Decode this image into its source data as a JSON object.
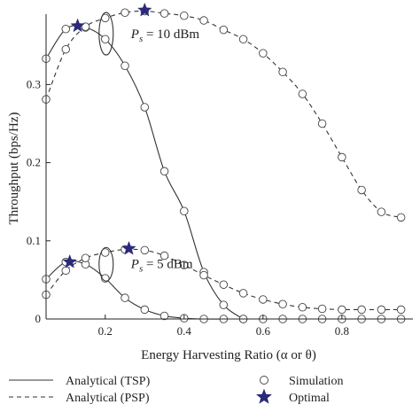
{
  "chart_data": {
    "type": "line",
    "xlabel": "Energy Harvesting Ratio (α or θ)",
    "ylabel": "Throughput (bps/Hz)",
    "xlim": [
      0.05,
      0.98
    ],
    "ylim": [
      0,
      0.39
    ],
    "xticks": [
      {
        "value": 0.2,
        "label": "0.2"
      },
      {
        "value": 0.4,
        "label": "0.4"
      },
      {
        "value": 0.6,
        "label": "0.6"
      },
      {
        "value": 0.8,
        "label": "0.8"
      }
    ],
    "yticks": [
      {
        "value": 0,
        "label": "0"
      },
      {
        "value": 0.1,
        "label": "0.1"
      },
      {
        "value": 0.2,
        "label": "0.2"
      },
      {
        "value": 0.3,
        "label": "0.3"
      }
    ],
    "series": [
      {
        "name": "Analytical (TSP)",
        "style": "solid",
        "group": "Ps = 10 dBm",
        "x": [
          0.05,
          0.1,
          0.15,
          0.2,
          0.25,
          0.3,
          0.35,
          0.4,
          0.45,
          0.5,
          0.55
        ],
        "y": [
          0.333,
          0.371,
          0.373,
          0.358,
          0.324,
          0.271,
          0.189,
          0.138,
          0.06,
          0.018,
          0.0
        ]
      },
      {
        "name": "Analytical (PSP)",
        "style": "dashed",
        "group": "Ps = 10 dBm",
        "x": [
          0.05,
          0.1,
          0.15,
          0.2,
          0.25,
          0.3,
          0.35,
          0.4,
          0.45,
          0.5,
          0.55,
          0.6,
          0.65,
          0.7,
          0.75,
          0.8,
          0.85,
          0.9,
          0.95
        ],
        "y": [
          0.281,
          0.345,
          0.374,
          0.385,
          0.392,
          0.394,
          0.391,
          0.388,
          0.382,
          0.37,
          0.358,
          0.34,
          0.316,
          0.288,
          0.25,
          0.207,
          0.165,
          0.137,
          0.13
        ]
      },
      {
        "name": "Analytical (TSP)",
        "style": "solid",
        "group": "Ps = 5 dBm",
        "x": [
          0.05,
          0.1,
          0.15,
          0.2,
          0.25,
          0.3,
          0.35,
          0.4,
          0.45,
          0.5,
          0.55,
          0.6,
          0.65,
          0.7,
          0.75,
          0.8,
          0.85,
          0.9,
          0.95
        ],
        "y": [
          0.051,
          0.073,
          0.07,
          0.052,
          0.027,
          0.012,
          0.004,
          0.001,
          0.0,
          0.0,
          0.0,
          0.0,
          0.0,
          0.0,
          0.0,
          0.0,
          0.0,
          0.0,
          0.0
        ]
      },
      {
        "name": "Analytical (PSP)",
        "style": "dashed",
        "group": "Ps = 5 dBm",
        "x": [
          0.05,
          0.1,
          0.15,
          0.2,
          0.25,
          0.3,
          0.35,
          0.4,
          0.45,
          0.5,
          0.55,
          0.6,
          0.65,
          0.7,
          0.75,
          0.8,
          0.85,
          0.9,
          0.95
        ],
        "y": [
          0.031,
          0.062,
          0.078,
          0.085,
          0.089,
          0.088,
          0.081,
          0.069,
          0.056,
          0.044,
          0.033,
          0.025,
          0.019,
          0.015,
          0.013,
          0.012,
          0.012,
          0.012,
          0.012
        ]
      }
    ],
    "optimal_points": [
      {
        "x": 0.13,
        "y": 0.375
      },
      {
        "x": 0.3,
        "y": 0.395
      },
      {
        "x": 0.11,
        "y": 0.073
      },
      {
        "x": 0.26,
        "y": 0.09
      }
    ],
    "annotations": [
      {
        "label_main": "P",
        "label_sub": "s",
        "label_rest": " = 10 dBm",
        "anchor_x": 0.2,
        "anchor_y": 0.365
      },
      {
        "label_main": "P",
        "label_sub": "s",
        "label_rest": " = 5 dBm",
        "anchor_x": 0.2,
        "anchor_y": 0.07
      }
    ],
    "legend": {
      "placement": "bottom",
      "entries": [
        {
          "label": "Analytical (TSP)",
          "marker": "solid-line"
        },
        {
          "label": "Analytical (PSP)",
          "marker": "dashed-line"
        },
        {
          "label": "Simulation",
          "marker": "circle"
        },
        {
          "label": "Optimal",
          "marker": "star"
        }
      ]
    },
    "colors": {
      "line": "#333333",
      "marker_edge": "#444444",
      "star": "#2b2a7a"
    }
  }
}
